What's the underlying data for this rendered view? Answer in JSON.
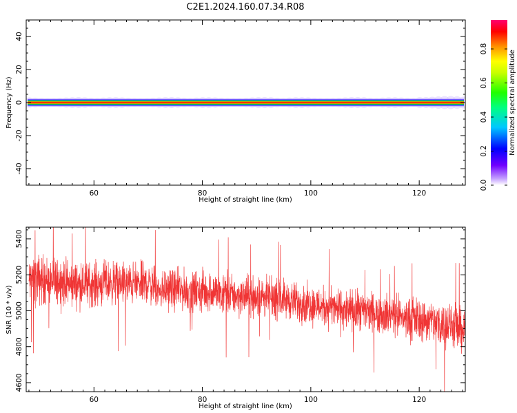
{
  "title": "C2E1.2024.160.07.34.R08",
  "chart_data": [
    {
      "type": "heatmap",
      "xlabel": "Height of straight line (km)",
      "ylabel": "Frequency (Hz)",
      "xlim": [
        47.5,
        128.5
      ],
      "ylim": [
        -50,
        50
      ],
      "x_ticks": [
        60,
        80,
        100,
        120
      ],
      "y_ticks": [
        40,
        20,
        0,
        -20,
        -40
      ],
      "x_tick_labels": [
        "60",
        "80",
        "100",
        "120"
      ],
      "y_tick_labels": [
        "40",
        "20",
        "0",
        "-20",
        "-40"
      ],
      "grid": false,
      "spectral_band": {
        "center_hz": 0,
        "peak_halfwidth_hz": 1,
        "halo_halfwidth_hz": 2.5,
        "peak_amplitude": 1.0
      },
      "colorbar": {
        "label": "Normalized spectral amplitude",
        "range": [
          0.0,
          0.97
        ],
        "ticks": [
          0.0,
          0.2,
          0.4,
          0.6,
          0.8
        ],
        "tick_labels": [
          "0.0",
          "0.2",
          "0.4",
          "0.6",
          "0.8"
        ],
        "colormap": "rainbow (white-violet-blue-cyan-green-yellow-red-magenta)"
      }
    },
    {
      "type": "line",
      "xlabel": "Height of straight line (km)",
      "ylabel": "SNR (10 * v/v)",
      "xlim": [
        47.5,
        128.5
      ],
      "ylim": [
        4550,
        5465
      ],
      "x_ticks": [
        60,
        80,
        100,
        120
      ],
      "y_ticks": [
        5400,
        5200,
        5000,
        4800,
        4600
      ],
      "x_tick_labels": [
        "60",
        "80",
        "100",
        "120"
      ],
      "y_tick_labels": [
        "5400",
        "5200",
        "5000",
        "4800",
        "4600"
      ],
      "grid": false,
      "series": [
        {
          "color": "#f03535",
          "x": [
            48,
            50,
            52,
            54,
            56,
            58,
            60,
            62,
            64,
            66,
            68,
            70,
            72,
            74,
            76,
            78,
            80,
            82,
            84,
            86,
            88,
            90,
            92,
            94,
            96,
            98,
            100,
            102,
            104,
            106,
            108,
            110,
            112,
            114,
            116,
            118,
            120,
            122,
            124,
            126,
            128
          ],
          "y": [
            5160,
            5175,
            5170,
            5160,
            5145,
            5145,
            5150,
            5155,
            5155,
            5145,
            5150,
            5150,
            5120,
            5120,
            5115,
            5110,
            5105,
            5110,
            5100,
            5085,
            5085,
            5080,
            5075,
            5060,
            5060,
            5050,
            5040,
            5030,
            5020,
            5005,
            5000,
            4995,
            4990,
            4985,
            4970,
            4960,
            4955,
            4945,
            4930,
            4920,
            4895
          ],
          "spread_low": [
            4880,
            4880,
            4900,
            4900,
            4900,
            4910,
            4900,
            4900,
            4920,
            4920,
            4920,
            4930,
            4910,
            4900,
            4880,
            4880,
            4870,
            4880,
            4870,
            4860,
            4840,
            4840,
            4850,
            4830,
            4830,
            4820,
            4800,
            4790,
            4780,
            4770,
            4760,
            4740,
            4760,
            4750,
            4730,
            4720,
            4700,
            4700,
            4680,
            4670,
            4650
          ],
          "spread_high": [
            5420,
            5465,
            5430,
            5420,
            5400,
            5400,
            5400,
            5390,
            5390,
            5390,
            5390,
            5380,
            5360,
            5340,
            5340,
            5340,
            5340,
            5330,
            5330,
            5300,
            5300,
            5300,
            5300,
            5270,
            5270,
            5250,
            5240,
            5240,
            5230,
            5220,
            5220,
            5210,
            5200,
            5210,
            5200,
            5190,
            5180,
            5170,
            5160,
            5150,
            5140
          ]
        }
      ]
    }
  ]
}
